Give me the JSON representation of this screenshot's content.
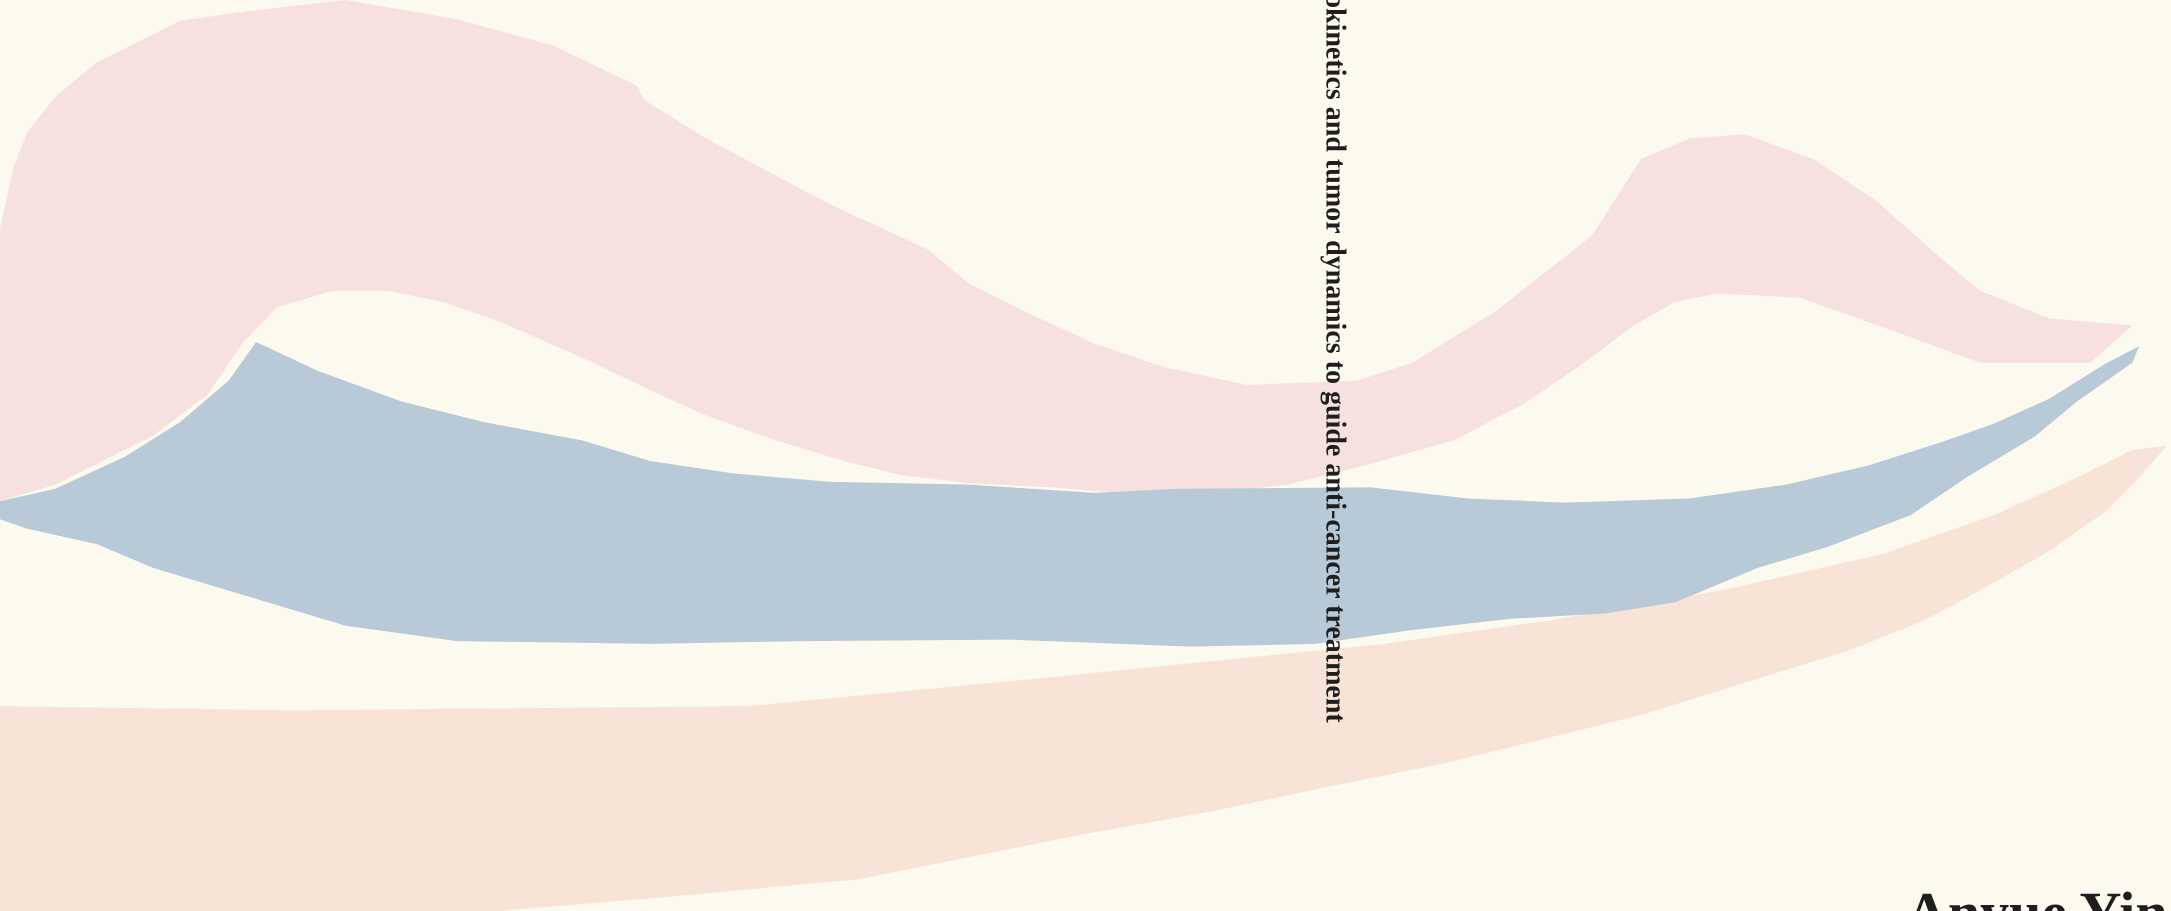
{
  "spine": {
    "title": "okinetics and tumor dynamics to guide anti-cancer treatment"
  },
  "cover": {
    "author": "Anyue Yin"
  }
}
